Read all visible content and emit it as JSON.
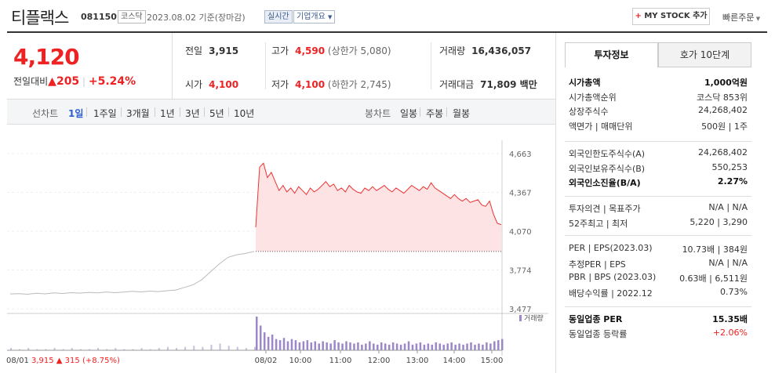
{
  "header": {
    "title": "티플랙스",
    "code": "081150",
    "market": "코스닥",
    "date": "2023.08.02 기준(장마감)",
    "realtime": "실시간",
    "corp_info": "기업개요",
    "mystock": "MY STOCK 추가",
    "quick_order": "빠른주문"
  },
  "price": {
    "current": "4,120",
    "change_label": "전일대비",
    "change_value": "205",
    "change_pct": "+5.24%"
  },
  "stats": {
    "prev_label": "전일",
    "prev": "3,915",
    "high_label": "고가",
    "high": "4,590",
    "upper_limit": "(상한가 5,080)",
    "volume_label": "거래량",
    "volume": "16,436,057",
    "open_label": "시가",
    "open": "4,100",
    "low_label": "저가",
    "low": "4,100",
    "lower_limit": "(하한가 2,745)",
    "amount_label": "거래대금",
    "amount": "71,809 백만"
  },
  "tabs": {
    "line_label": "선차트",
    "periods": [
      "1일",
      "1주일",
      "3개월",
      "1년",
      "3년",
      "5년",
      "10년"
    ],
    "candle_label": "봉차트",
    "candles": [
      "일봉",
      "주봉",
      "월봉"
    ]
  },
  "right": {
    "tab_info": "투자정보",
    "tab_orderbook": "호가 10단계",
    "rows1": [
      {
        "k": "시가총액",
        "v": "1,000억원"
      },
      {
        "k": "시가총액순위",
        "v": "코스닥 853위"
      },
      {
        "k": "상장주식수",
        "v": "24,268,402"
      },
      {
        "k": "액면가 | 매매단위",
        "v": "500원 | 1주"
      }
    ],
    "rows2": [
      {
        "k": "외국인한도주식수(A)",
        "v": "24,268,402"
      },
      {
        "k": "외국인보유주식수(B)",
        "v": "550,253"
      },
      {
        "k": "외국인소진율(B/A)",
        "v": "2.27%"
      }
    ],
    "rows3": [
      {
        "k": "투자의견 | 목표주가",
        "v": "N/A | N/A"
      },
      {
        "k": "52주최고 | 최저",
        "v": "5,220 | 3,290"
      }
    ],
    "rows4": [
      {
        "k": "PER | EPS(2023.03)",
        "v": "10.73배 | 384원"
      },
      {
        "k": "추정PER | EPS",
        "v": "N/A | N/A"
      },
      {
        "k": "PBR | BPS (2023.03)",
        "v": "0.63배 | 6,511원"
      },
      {
        "k": "배당수익률 | 2022.12",
        "v": "0.73%"
      }
    ],
    "rows5": [
      {
        "k": "동일업종 PER",
        "v": "15.35배"
      },
      {
        "k": "동일업종 등락률",
        "v": "+2.06%"
      }
    ]
  },
  "chart_data": {
    "type": "area",
    "y_ticks": [
      "4,663",
      "4,367",
      "4,070",
      "3,774",
      "3,477"
    ],
    "ylim": [
      3477,
      4663
    ],
    "x_ticks": [
      "08/02",
      "10:00",
      "11:00",
      "12:00",
      "13:00",
      "14:00",
      "15:00"
    ],
    "prev_day_label": "08/01",
    "prev_day_close": "3,915",
    "prev_day_change": "315",
    "prev_day_pct": "(+8.75%)",
    "volume_label": "거래량",
    "base_price": 3915,
    "prev_day_series": [
      3590,
      3592,
      3588,
      3595,
      3591,
      3598,
      3594,
      3600,
      3596,
      3602,
      3598,
      3605,
      3600,
      3604,
      3610,
      3606,
      3612,
      3608,
      3615,
      3620,
      3640,
      3660,
      3700,
      3760,
      3820,
      3870,
      3890,
      3900,
      3915
    ],
    "today_series": [
      4100,
      4560,
      4590,
      4480,
      4520,
      4450,
      4380,
      4420,
      4370,
      4400,
      4360,
      4410,
      4380,
      4350,
      4400,
      4370,
      4390,
      4420,
      4450,
      4410,
      4430,
      4380,
      4400,
      4370,
      4420,
      4390,
      4370,
      4360,
      4400,
      4380,
      4410,
      4380,
      4400,
      4420,
      4390,
      4370,
      4400,
      4380,
      4360,
      4390,
      4420,
      4400,
      4380,
      4410,
      4390,
      4440,
      4400,
      4380,
      4360,
      4340,
      4320,
      4350,
      4320,
      4300,
      4320,
      4290,
      4300,
      4310,
      4270,
      4260,
      4300,
      4200,
      4130,
      4120
    ],
    "prev_day_volume": [
      2,
      1,
      2,
      1,
      1,
      2,
      1,
      2,
      1,
      1,
      2,
      1,
      2,
      1,
      1,
      2,
      1,
      2,
      3,
      2,
      3,
      4,
      3,
      5,
      6,
      4,
      3,
      2,
      3
    ],
    "today_volume": [
      30,
      22,
      16,
      12,
      14,
      10,
      9,
      11,
      8,
      10,
      9,
      7,
      8,
      9,
      7,
      8,
      6,
      8,
      7,
      6,
      9,
      7,
      6,
      8,
      7,
      6,
      7,
      5,
      6,
      8,
      6,
      5,
      7,
      6,
      5,
      7,
      6,
      5,
      6,
      8,
      5,
      6,
      7,
      5,
      6,
      5,
      7,
      6,
      5,
      6,
      7,
      5,
      6,
      5,
      6,
      7,
      5,
      6,
      5,
      7,
      6,
      8,
      9,
      10
    ]
  }
}
